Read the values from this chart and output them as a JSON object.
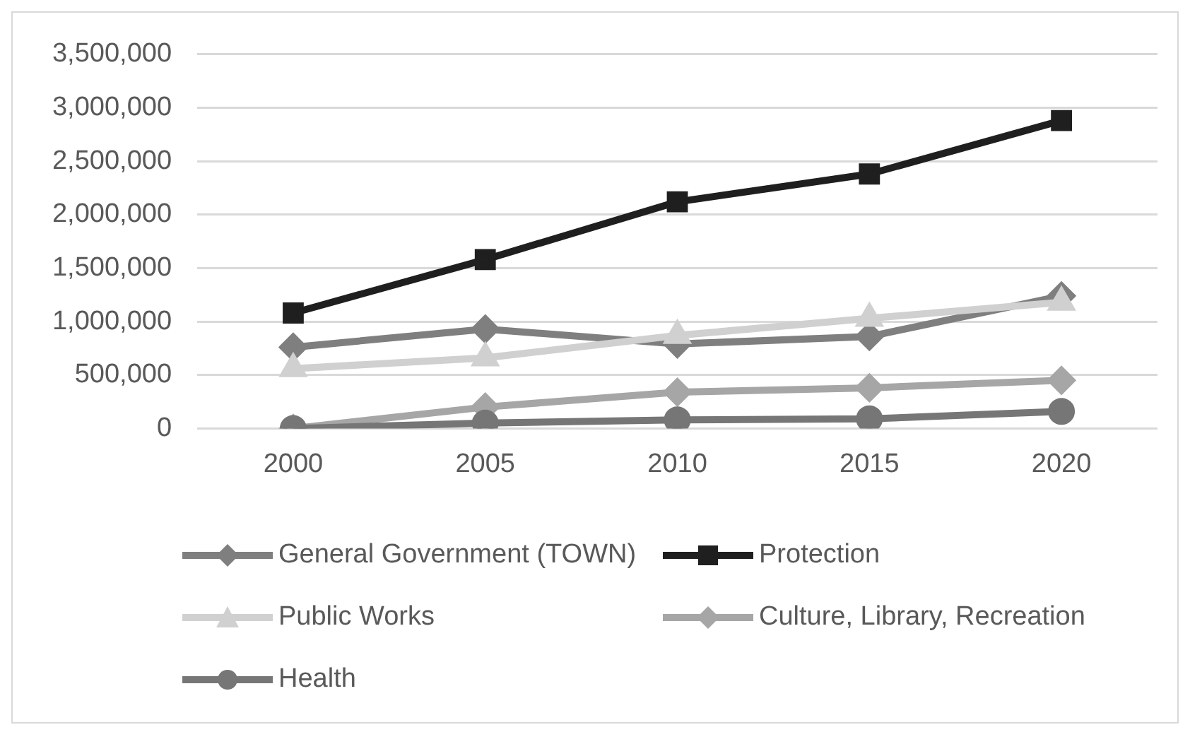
{
  "chart_data": {
    "type": "line",
    "categories": [
      "2000",
      "2005",
      "2010",
      "2015",
      "2020"
    ],
    "series": [
      {
        "name": "General Government (TOWN)",
        "color": "#7f7f7f",
        "marker": "diamond",
        "values": [
          760000,
          930000,
          790000,
          860000,
          1240000
        ]
      },
      {
        "name": "Protection",
        "color": "#1f1f1f",
        "marker": "square",
        "values": [
          1080000,
          1580000,
          2120000,
          2380000,
          2880000
        ]
      },
      {
        "name": "Public Works",
        "color": "#d0d0d0",
        "marker": "triangle",
        "values": [
          560000,
          660000,
          870000,
          1030000,
          1180000
        ]
      },
      {
        "name": "Culture, Library, Recreation",
        "color": "#a6a6a6",
        "marker": "diamond",
        "values": [
          0,
          200000,
          340000,
          380000,
          450000
        ]
      },
      {
        "name": "Health",
        "color": "#767676",
        "marker": "circle",
        "values": [
          0,
          50000,
          80000,
          90000,
          160000
        ]
      }
    ],
    "ylim": [
      0,
      3500000
    ],
    "yticks": [
      0,
      {
        "value": 500000,
        "label": "500,000"
      },
      {
        "value": 1000000,
        "label": "1,000,000"
      },
      {
        "value": 1500000,
        "label": "1,500,000"
      },
      {
        "value": 2000000,
        "label": "2,000,000"
      },
      {
        "value": 2500000,
        "label": "2,500,000"
      },
      {
        "value": 3000000,
        "label": "3,000,000"
      },
      {
        "value": 3500000,
        "label": "3,500,000"
      }
    ],
    "grid": "y",
    "legend": "bottom"
  }
}
